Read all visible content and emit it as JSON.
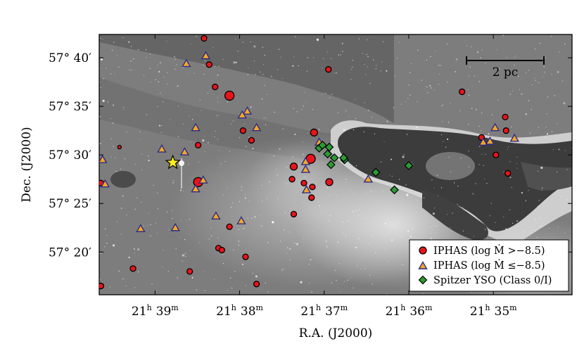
{
  "chart_data": {
    "type": "scatter",
    "background": "grayscale sky image of a nebula with dark pillar",
    "xlabel": "R.A. (J2000)",
    "ylabel": "Dec. (J2000)",
    "x_ticks": [
      {
        "label": "21h 39m",
        "h": "21",
        "m": "39"
      },
      {
        "label": "21h 38m",
        "h": "21",
        "m": "38"
      },
      {
        "label": "21h 37m",
        "h": "21",
        "m": "37"
      },
      {
        "label": "21h 36m",
        "h": "21",
        "m": "36"
      },
      {
        "label": "21h 35m",
        "h": "21",
        "m": "35"
      }
    ],
    "y_ticks": [
      {
        "label": "57° 40′",
        "value": 40
      },
      {
        "label": "57° 35′",
        "value": 35
      },
      {
        "label": "57° 30′",
        "value": 30
      },
      {
        "label": "57° 25′",
        "value": 25
      },
      {
        "label": "57° 20′",
        "value": 20
      }
    ],
    "x_unit": "R.A. minutes after 21h 34m",
    "y_unit": "Dec. arcminutes after 57°",
    "xlim": [
      5.66,
      0.07
    ],
    "ylim": [
      15.6,
      42.4
    ],
    "scale_bar": {
      "label": "2 pc"
    },
    "legend": {
      "placement": "lower-right",
      "entries": [
        {
          "label": "IPHAS (log Ṁ >−8.5)",
          "marker": "circle",
          "color": "#e8141b"
        },
        {
          "label": "IPHAS (log Ṁ ≤−8.5)",
          "marker": "triangle",
          "color": "#f5a623"
        },
        {
          "label": "Spitzer YSO (Class 0/I)",
          "marker": "diamond",
          "color": "#2c9a35"
        }
      ]
    },
    "colors": {
      "circle": "#e8141b",
      "triangle": "#f5a623",
      "triangle_edge": "#2c2c8a",
      "diamond": "#2c9a35",
      "star": "#ffee22"
    },
    "highlight": {
      "name": "star",
      "x": 4.79,
      "y": 29.2
    },
    "series": [
      {
        "name": "IPHAS (log Ṁ >−8.5)",
        "marker": "circle",
        "points": [
          {
            "x": 4.42,
            "y": 42.0,
            "s": "s"
          },
          {
            "x": 4.36,
            "y": 39.3,
            "s": "s"
          },
          {
            "x": 4.29,
            "y": 37.0,
            "s": "s"
          },
          {
            "x": 4.12,
            "y": 36.1,
            "s": "l"
          },
          {
            "x": 3.96,
            "y": 32.5,
            "s": "s"
          },
          {
            "x": 3.86,
            "y": 31.5,
            "s": "s"
          },
          {
            "x": 4.49,
            "y": 31.0,
            "s": "s"
          },
          {
            "x": 4.49,
            "y": 27.2,
            "s": "l"
          },
          {
            "x": 2.95,
            "y": 38.8,
            "s": "s"
          },
          {
            "x": 3.12,
            "y": 32.3,
            "s": "m"
          },
          {
            "x": 3.16,
            "y": 29.6,
            "s": "l"
          },
          {
            "x": 3.36,
            "y": 28.8,
            "s": "m"
          },
          {
            "x": 3.38,
            "y": 27.5,
            "s": "s"
          },
          {
            "x": 3.24,
            "y": 27.1,
            "s": "s"
          },
          {
            "x": 3.14,
            "y": 26.7,
            "s": "s"
          },
          {
            "x": 2.94,
            "y": 27.2,
            "s": "m"
          },
          {
            "x": 3.15,
            "y": 25.6,
            "s": "s"
          },
          {
            "x": 3.36,
            "y": 23.9,
            "s": "s"
          },
          {
            "x": 4.12,
            "y": 22.6,
            "s": "s"
          },
          {
            "x": 4.25,
            "y": 20.4,
            "s": "s"
          },
          {
            "x": 4.21,
            "y": 20.2,
            "s": "s"
          },
          {
            "x": 3.93,
            "y": 19.5,
            "s": "s"
          },
          {
            "x": 3.8,
            "y": 16.7,
            "s": "s"
          },
          {
            "x": 4.59,
            "y": 18.0,
            "s": "s"
          },
          {
            "x": 5.26,
            "y": 18.3,
            "s": "s"
          },
          {
            "x": 5.64,
            "y": 16.5,
            "s": "s"
          },
          {
            "x": 5.64,
            "y": 27.1,
            "s": "s"
          },
          {
            "x": 5.42,
            "y": 30.8,
            "s": "xs"
          },
          {
            "x": 1.37,
            "y": 36.5,
            "s": "s"
          },
          {
            "x": 1.14,
            "y": 31.8,
            "s": "s"
          },
          {
            "x": 0.86,
            "y": 33.9,
            "s": "s"
          },
          {
            "x": 0.85,
            "y": 32.5,
            "s": "s"
          },
          {
            "x": 0.97,
            "y": 30.0,
            "s": "s"
          },
          {
            "x": 0.83,
            "y": 28.1,
            "s": "s"
          }
        ]
      },
      {
        "name": "IPHAS (log Ṁ ≤−8.5)",
        "marker": "triangle",
        "points": [
          {
            "x": 4.4,
            "y": 40.2
          },
          {
            "x": 4.63,
            "y": 39.4
          },
          {
            "x": 3.91,
            "y": 34.5
          },
          {
            "x": 3.97,
            "y": 34.1
          },
          {
            "x": 3.8,
            "y": 32.8
          },
          {
            "x": 4.52,
            "y": 32.8
          },
          {
            "x": 4.65,
            "y": 30.3
          },
          {
            "x": 4.92,
            "y": 30.6
          },
          {
            "x": 4.43,
            "y": 27.4
          },
          {
            "x": 4.52,
            "y": 26.5
          },
          {
            "x": 5.62,
            "y": 29.5
          },
          {
            "x": 5.59,
            "y": 27.0
          },
          {
            "x": 3.22,
            "y": 29.3
          },
          {
            "x": 3.22,
            "y": 28.5
          },
          {
            "x": 3.21,
            "y": 26.4
          },
          {
            "x": 2.48,
            "y": 27.5
          },
          {
            "x": 4.28,
            "y": 23.7
          },
          {
            "x": 3.98,
            "y": 23.2
          },
          {
            "x": 4.76,
            "y": 22.5
          },
          {
            "x": 5.17,
            "y": 22.4
          },
          {
            "x": 5.72,
            "y": 23.7
          },
          {
            "x": 1.12,
            "y": 31.3
          },
          {
            "x": 1.04,
            "y": 31.4
          },
          {
            "x": 0.98,
            "y": 32.8
          },
          {
            "x": 0.75,
            "y": 31.7
          },
          {
            "x": 3.06,
            "y": 31.3
          }
        ]
      },
      {
        "name": "Spitzer YSO (Class 0/I)",
        "marker": "diamond",
        "points": [
          {
            "x": 3.06,
            "y": 30.7
          },
          {
            "x": 3.02,
            "y": 31.0
          },
          {
            "x": 2.94,
            "y": 30.8
          },
          {
            "x": 2.96,
            "y": 30.1
          },
          {
            "x": 2.88,
            "y": 29.7
          },
          {
            "x": 2.76,
            "y": 29.5
          },
          {
            "x": 2.77,
            "y": 29.7
          },
          {
            "x": 2.92,
            "y": 29.0
          },
          {
            "x": 2.39,
            "y": 28.2
          },
          {
            "x": 2.17,
            "y": 26.4
          },
          {
            "x": 2.0,
            "y": 28.9
          }
        ]
      }
    ]
  }
}
